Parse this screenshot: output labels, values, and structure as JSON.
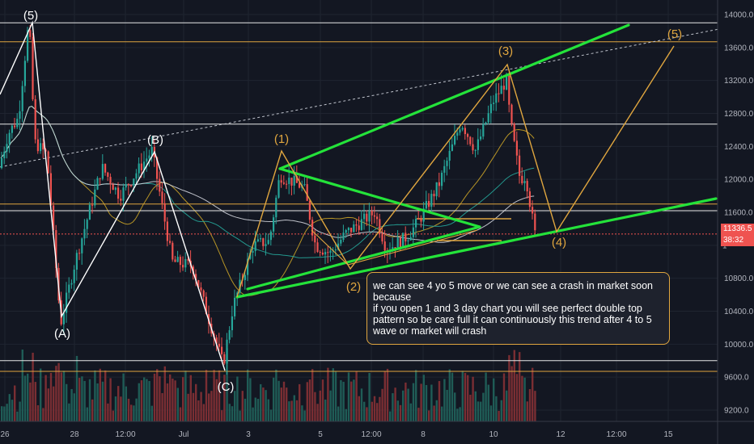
{
  "chart_data": {
    "type": "candlestick",
    "y_axis": {
      "ticks": [
        "14000.0",
        "13600.0",
        "13200.0",
        "12800.0",
        "12400.0",
        "12000.0",
        "11600.0",
        "10800.0",
        "10400.0",
        "10000.0",
        "9600.0",
        "9200.0"
      ],
      "range": [
        9000,
        14150
      ]
    },
    "x_axis": {
      "ticks": [
        "26",
        "28",
        "12:00",
        "Jul",
        "3",
        "5",
        "12:00",
        "8",
        "10",
        "12",
        "12:00",
        "15"
      ]
    },
    "current_price": {
      "label": "11336.5",
      "countdown": "38:32",
      "color": "#ef5350"
    },
    "wave_labels": {
      "historic": [
        "(5)",
        "(A)",
        "(B)",
        "(C)"
      ],
      "projected": [
        "(1)",
        "(2)",
        "(3)",
        "(4)",
        "(5)"
      ]
    },
    "horizontal_levels": {
      "white": [
        13900,
        12670,
        11620,
        9800
      ],
      "orange": [
        13670,
        11700,
        9670
      ]
    },
    "annotation_text": "we can see 4 yo 5 move or we can see a crash in market soon because\nif you open 1 and 3 day chart you will see perfect double top pattern so be care full it can continuously this trend after 4 to 5 wave or market will crash",
    "colors": {
      "up": "#26a69a",
      "down": "#ef5350",
      "trend": "#24e33a",
      "projection": "#e0a63f",
      "wave_white": "#ffffff",
      "background": "#131722"
    },
    "axis_partial_label": "1"
  }
}
